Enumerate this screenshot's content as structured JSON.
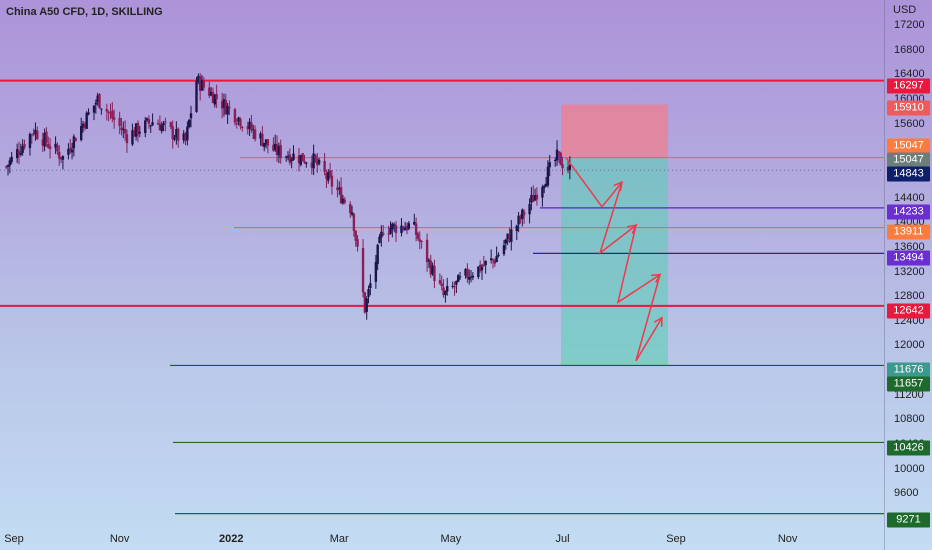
{
  "header": {
    "title": "China A50 CFD, 1D, SKILLING",
    "currency": "USD"
  },
  "price_axis": {
    "ticks": [
      "17200",
      "16800",
      "16400",
      "16000",
      "15600",
      "15200",
      "14800",
      "14400",
      "14000",
      "13600",
      "13200",
      "12800",
      "12400",
      "12000",
      "11600",
      "11200",
      "10800",
      "10400",
      "10000",
      "9600",
      "9200"
    ]
  },
  "time_axis": {
    "labels": [
      {
        "text": "Sep"
      },
      {
        "text": "Nov"
      },
      {
        "text": "2022",
        "bold": true
      },
      {
        "text": "Mar"
      },
      {
        "text": "May"
      },
      {
        "text": "Jul"
      },
      {
        "text": "Sep"
      },
      {
        "text": "Nov"
      }
    ]
  },
  "levels": [
    {
      "price": 16297,
      "label": "16297",
      "color": "#e8193c",
      "kind": "resistance"
    },
    {
      "price": 15910,
      "label": "15910",
      "color": "#f05a5a",
      "kind": "stop-loss"
    },
    {
      "price": 15047,
      "label": "15047",
      "color": "#ff7a3d",
      "kind": "entry"
    },
    {
      "price": 15047,
      "label": "15047",
      "color": "#6a7f7a",
      "kind": "entry-marker"
    },
    {
      "price": 14843,
      "label": "14843",
      "color": "#0d1f6a",
      "kind": "last-price"
    },
    {
      "price": 14233,
      "label": "14233",
      "color": "#6a2fd0",
      "kind": "support"
    },
    {
      "price": 13911,
      "label": "13911",
      "color": "#ff7a3d",
      "kind": "support"
    },
    {
      "price": 13494,
      "label": "13494",
      "color": "#6a2fd0",
      "kind": "support"
    },
    {
      "price": 12642,
      "label": "12642",
      "color": "#e8193c",
      "kind": "support"
    },
    {
      "price": 11676,
      "label": "11676",
      "color": "#3a9a8e",
      "kind": "take-profit"
    },
    {
      "price": 11657,
      "label": "11657",
      "color": "#1e6a2c",
      "kind": "support"
    },
    {
      "price": 10426,
      "label": "10426",
      "color": "#1e6a2c",
      "kind": "support"
    },
    {
      "price": 9271,
      "label": "9271",
      "color": "#1e6a2c",
      "kind": "support"
    }
  ],
  "position_tool": {
    "type": "short",
    "entry": 15047,
    "stop": 15910,
    "target": 11676,
    "risk_color": "#f07d8d",
    "reward_color": "#5ccfb8"
  },
  "forecast_path": {
    "color": "#f0384c",
    "prices": [
      15047,
      14250,
      14650,
      13500,
      13950,
      12700,
      13150,
      11750,
      12450
    ]
  },
  "chart_data": {
    "type": "candlestick",
    "symbol": "China A50 CFD",
    "interval": "1D",
    "broker": "SKILLING",
    "currency": "USD",
    "ylim": [
      9000,
      17500
    ],
    "x_labels": [
      "Sep",
      "Nov",
      "2022",
      "Mar",
      "May",
      "Jul",
      "Sep",
      "Nov"
    ],
    "close_trend": [
      {
        "date": "2021-08-31",
        "close": 14900
      },
      {
        "date": "2021-09-15",
        "close": 15500
      },
      {
        "date": "2021-10-01",
        "close": 15050
      },
      {
        "date": "2021-10-20",
        "close": 16000
      },
      {
        "date": "2021-11-05",
        "close": 15400
      },
      {
        "date": "2021-11-20",
        "close": 15650
      },
      {
        "date": "2021-12-07",
        "close": 15300
      },
      {
        "date": "2021-12-13",
        "close": 16300
      },
      {
        "date": "2022-01-01",
        "close": 15800
      },
      {
        "date": "2022-01-25",
        "close": 15150
      },
      {
        "date": "2022-02-15",
        "close": 15000
      },
      {
        "date": "2022-03-08",
        "close": 14200
      },
      {
        "date": "2022-03-15",
        "close": 12600
      },
      {
        "date": "2022-03-25",
        "close": 13900
      },
      {
        "date": "2022-04-10",
        "close": 13950
      },
      {
        "date": "2022-04-27",
        "close": 12800
      },
      {
        "date": "2022-05-10",
        "close": 13150
      },
      {
        "date": "2022-05-25",
        "close": 13400
      },
      {
        "date": "2022-06-10",
        "close": 14150
      },
      {
        "date": "2022-06-28",
        "close": 15050
      },
      {
        "date": "2022-07-05",
        "close": 14843
      }
    ],
    "horizontal_levels": [
      16297,
      15047,
      14233,
      13911,
      13494,
      12642,
      11676,
      10426,
      9271
    ]
  }
}
